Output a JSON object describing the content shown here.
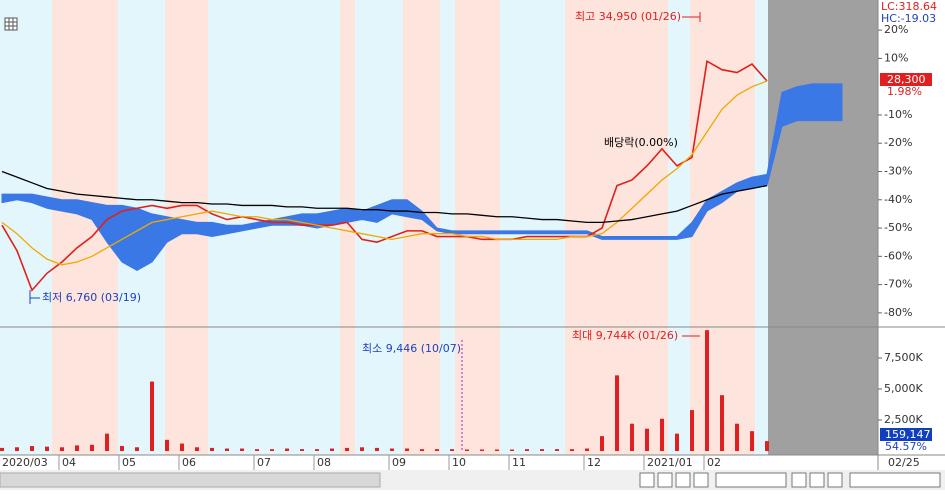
{
  "chart_data": [
    {
      "type": "line",
      "series": [
        {
          "color": "#e0201a",
          "values": [
            -49,
            -58,
            -72,
            -66,
            -62,
            -57,
            -53,
            -47,
            -44,
            -43,
            -42,
            -43,
            -42,
            -42,
            -45,
            -47,
            -46,
            -47,
            -48,
            -48,
            -49,
            -49,
            -49,
            -48,
            -54,
            -55,
            -53,
            -51,
            -51,
            -53,
            -53,
            -53,
            -54,
            -54,
            -54,
            -53,
            -53,
            -53,
            -53,
            -53,
            -50,
            -35,
            -33,
            -28,
            -22,
            -28,
            -25,
            9,
            6,
            5,
            8,
            2,
            null,
            null,
            null,
            null,
            null,
            null,
            null
          ]
        },
        {
          "color": "#f0a800",
          "values": [
            -48,
            -52,
            -57,
            -61,
            -63,
            -62,
            -60,
            -57,
            -54,
            -51,
            -48,
            -47,
            -46,
            -45,
            -44,
            -45,
            -46,
            -46,
            -47,
            -47,
            -48,
            -49,
            -50,
            -51,
            -52,
            -53,
            -54,
            -53,
            -52,
            -52,
            -52,
            -53,
            -53,
            -54,
            -54,
            -54,
            -54,
            -54,
            -53,
            -53,
            -52,
            -48,
            -43,
            -38,
            -33,
            -29,
            -24,
            -16,
            -8,
            -3,
            0,
            2,
            null,
            null,
            null,
            null,
            null,
            null,
            null
          ]
        },
        {
          "color": "#000000",
          "values": [
            -30,
            -32,
            -34,
            -36,
            -37,
            -38,
            -38.5,
            -39,
            -39.5,
            -40,
            -40,
            -40.5,
            -41,
            -41,
            -41.5,
            -41.5,
            -42,
            -42,
            -42,
            -42.5,
            -42.5,
            -43,
            -43,
            -43,
            -43.5,
            -43.5,
            -44,
            -44,
            -44.5,
            -44.5,
            -45,
            -45,
            -45.5,
            -46,
            -46,
            -46.5,
            -47,
            -47,
            -47.5,
            -48,
            -48,
            -47.5,
            -47,
            -46,
            -45,
            -44,
            -42,
            -40,
            -38,
            -37,
            -36,
            -35,
            null,
            null,
            null,
            null,
            null,
            null,
            null
          ]
        }
      ],
      "cloud": {
        "color": "#3a78e6",
        "upper": [
          -38,
          -38,
          -38,
          -39,
          -40,
          -40,
          -41,
          -42,
          -42,
          -43,
          -45,
          -46,
          -47,
          -48,
          -48,
          -49,
          -49,
          -48,
          -47,
          -46,
          -45,
          -45,
          -44,
          -43,
          -44,
          -42,
          -40,
          -40,
          -44,
          -50,
          -51,
          -51,
          -51,
          -51,
          -51,
          -51,
          -51,
          -51,
          -51,
          -51,
          -53,
          -53,
          -53,
          -53,
          -53,
          -53,
          -48,
          -40,
          -37,
          -34,
          -32,
          -31,
          -2,
          0,
          1,
          1,
          1,
          null,
          null
        ],
        "lower": [
          -41,
          -40,
          -41,
          -43,
          -44,
          -45,
          -47,
          -55,
          -62,
          -65,
          -62,
          -55,
          -52,
          -52,
          -53,
          -52,
          -51,
          -50,
          -49,
          -49,
          -49,
          -50,
          -49,
          -48,
          -47,
          -48,
          -45,
          -46,
          -47,
          -51,
          -52,
          -52,
          -52,
          -52,
          -52,
          -52,
          -52,
          -52,
          -52,
          -52,
          -54,
          -54,
          -54,
          -54,
          -54,
          -54,
          -53,
          -44,
          -41,
          -37,
          -36,
          -35,
          -14,
          -12,
          -12,
          -12,
          -12,
          null,
          null
        ]
      },
      "ylim": [
        -85,
        25
      ],
      "yticks": [
        {
          "value": 20,
          "label": "20%"
        },
        {
          "value": 10,
          "label": "10%"
        },
        {
          "value": -10,
          "label": "-10%"
        },
        {
          "value": -20,
          "label": "-20%"
        },
        {
          "value": -30,
          "label": "-30%"
        },
        {
          "value": -40,
          "label": "-40%"
        },
        {
          "value": -50,
          "label": "-50%"
        },
        {
          "value": -60,
          "label": "-60%"
        },
        {
          "value": -70,
          "label": "-70%"
        },
        {
          "value": -80,
          "label": "-80%"
        }
      ],
      "annotations": [
        "최고 34,950 (01/26)",
        "최저 6,760 (03/19)",
        "배당락(0.00%)"
      ],
      "readouts": [
        "LC:318.64",
        "HC:-19.03",
        "28,300",
        "1.98%"
      ]
    },
    {
      "type": "bar",
      "color": "#e02020",
      "categories": [
        "2020/03",
        null,
        null,
        null,
        "04",
        null,
        null,
        null,
        "05",
        null,
        null,
        null,
        "06",
        null,
        null,
        null,
        null,
        "07",
        null,
        null,
        null,
        "08",
        null,
        null,
        null,
        null,
        "09",
        null,
        null,
        null,
        "10",
        null,
        null,
        null,
        "11",
        null,
        null,
        null,
        null,
        "12",
        null,
        null,
        null,
        "2021/01",
        null,
        null,
        null,
        "02",
        null,
        null,
        null,
        null,
        null,
        null,
        null,
        null,
        null,
        null,
        null
      ],
      "values": [
        250,
        300,
        400,
        350,
        300,
        450,
        500,
        1400,
        400,
        300,
        5600,
        900,
        600,
        300,
        250,
        200,
        200,
        150,
        150,
        200,
        150,
        150,
        200,
        250,
        300,
        250,
        200,
        200,
        150,
        150,
        150,
        120,
        120,
        120,
        120,
        150,
        150,
        150,
        150,
        200,
        1200,
        6100,
        2200,
        1800,
        2600,
        1400,
        3300,
        9744,
        4500,
        2200,
        1600,
        800,
        null,
        null,
        null,
        null,
        null,
        null,
        null
      ],
      "ylim": [
        0,
        10000
      ],
      "yticks": [
        {
          "value": 7500,
          "label": "7,500K"
        },
        {
          "value": 5000,
          "label": "5,000K"
        },
        {
          "value": 2500,
          "label": "2,500K"
        }
      ],
      "annotations": [
        "최대 9,744K (01/26)",
        "최소 9,446 (10/07)"
      ],
      "readouts": [
        "159,147",
        "54.57%"
      ],
      "x_end_label": "02/25"
    }
  ]
}
